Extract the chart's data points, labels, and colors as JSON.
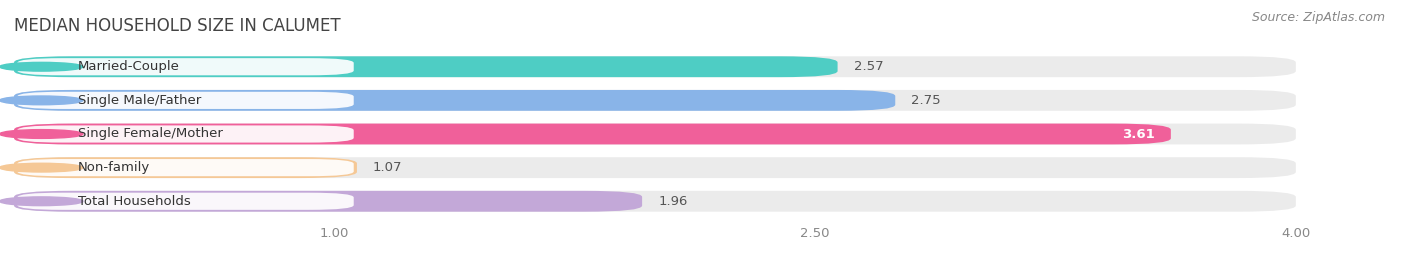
{
  "title": "MEDIAN HOUSEHOLD SIZE IN CALUMET",
  "source": "Source: ZipAtlas.com",
  "categories": [
    "Married-Couple",
    "Single Male/Father",
    "Single Female/Mother",
    "Non-family",
    "Total Households"
  ],
  "values": [
    2.57,
    2.75,
    3.61,
    1.07,
    1.96
  ],
  "bar_colors": [
    "#4ecdc4",
    "#89b4e8",
    "#f0609a",
    "#f5c896",
    "#c3a8d8"
  ],
  "value_text_colors": [
    "#555555",
    "#555555",
    "#ffffff",
    "#555555",
    "#555555"
  ],
  "xlim_min": 0.0,
  "xlim_max": 4.3,
  "data_min": 0.0,
  "data_max": 4.0,
  "xticks": [
    1.0,
    2.5,
    4.0
  ],
  "title_fontsize": 12,
  "label_fontsize": 9.5,
  "value_fontsize": 9.5,
  "source_fontsize": 9,
  "bar_height": 0.62,
  "bar_gap": 0.38,
  "background_color": "#ffffff",
  "bar_bg_color": "#ebebeb",
  "grid_color": "#ffffff",
  "tick_color": "#888888"
}
